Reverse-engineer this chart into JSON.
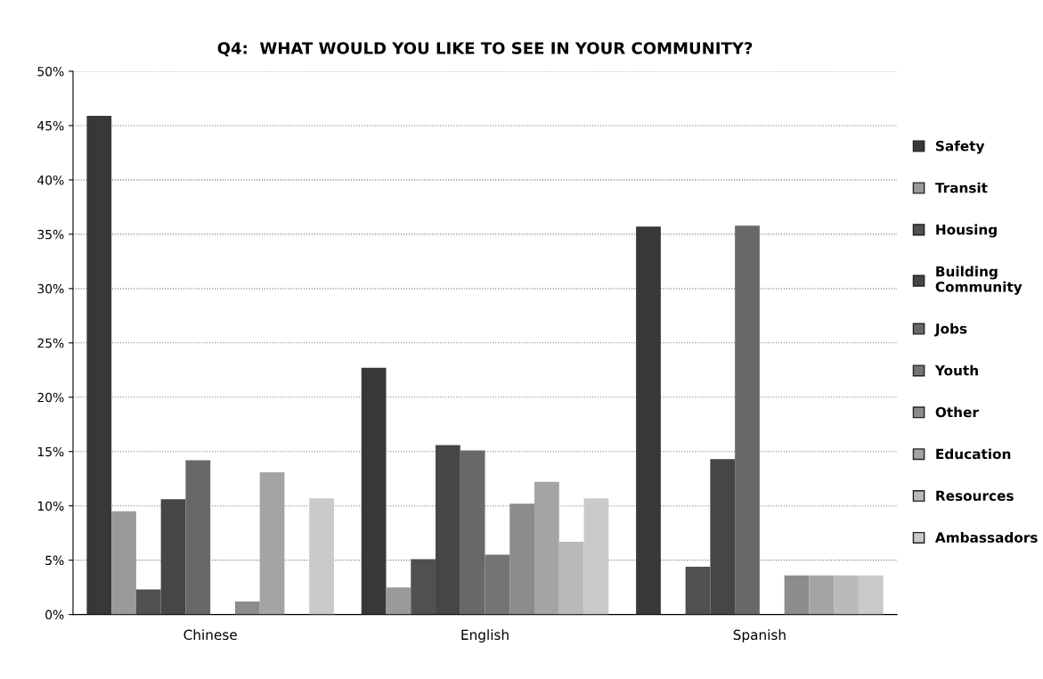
{
  "chart_data": {
    "type": "bar",
    "title": "Q4:  WHAT WOULD YOU LIKE TO SEE IN YOUR COMMUNITY?",
    "categories": [
      "Chinese",
      "English",
      "Spanish"
    ],
    "series": [
      {
        "name": "Safety",
        "color": "#383838",
        "values": [
          45.9,
          22.7,
          35.7
        ]
      },
      {
        "name": "Transit",
        "color": "#9a9a9a",
        "values": [
          9.5,
          2.5,
          0
        ]
      },
      {
        "name": "Housing",
        "color": "#505050",
        "values": [
          2.3,
          5.1,
          4.4
        ]
      },
      {
        "name": "Building\nCommunity",
        "color": "#464646",
        "values": [
          10.6,
          15.6,
          14.3
        ]
      },
      {
        "name": "Jobs",
        "color": "#686868",
        "values": [
          14.2,
          15.1,
          35.8
        ]
      },
      {
        "name": "Youth",
        "color": "#747474",
        "values": [
          0,
          5.5,
          0
        ]
      },
      {
        "name": "Other",
        "color": "#8c8c8c",
        "values": [
          1.2,
          10.2,
          3.6
        ]
      },
      {
        "name": "Education",
        "color": "#a4a4a4",
        "values": [
          13.1,
          12.2,
          3.6
        ]
      },
      {
        "name": "Resources",
        "color": "#bababa",
        "values": [
          0,
          6.7,
          3.6
        ]
      },
      {
        "name": "Ambassadors",
        "color": "#cacaca",
        "values": [
          10.7,
          10.7,
          3.6
        ]
      }
    ],
    "ylim": [
      0,
      50
    ],
    "yticks": [
      {
        "value": 0,
        "label": "0%"
      },
      {
        "value": 5,
        "label": "5%"
      },
      {
        "value": 10,
        "label": "10%"
      },
      {
        "value": 15,
        "label": "15%"
      },
      {
        "value": 20,
        "label": "20%"
      },
      {
        "value": 25,
        "label": "25%"
      },
      {
        "value": 30,
        "label": "30%"
      },
      {
        "value": 35,
        "label": "35%"
      },
      {
        "value": 40,
        "label": "40%"
      },
      {
        "value": 45,
        "label": "45%"
      },
      {
        "value": 50,
        "label": "50%"
      }
    ],
    "grid": "y",
    "legend": "right"
  }
}
